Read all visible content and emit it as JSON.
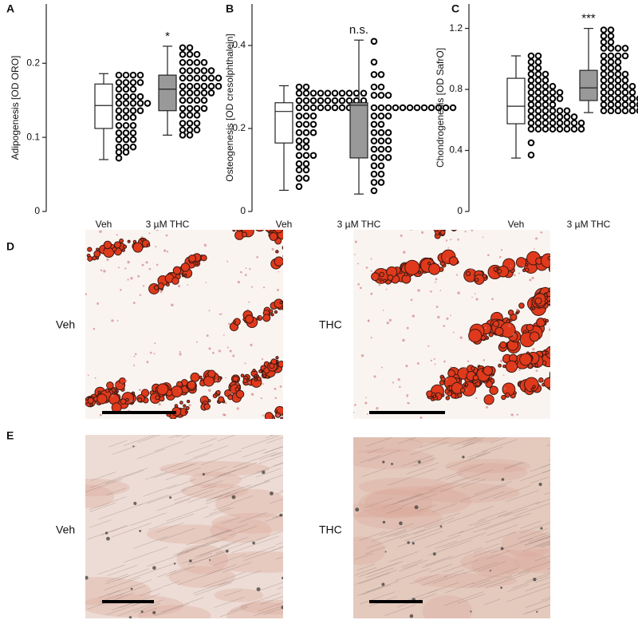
{
  "chart_data": [
    {
      "type": "box",
      "panel": "A",
      "ylabel": "Adipogenesis [OD ORO]",
      "categories": [
        "Veh",
        "3 µM THC"
      ],
      "ylim": [
        0,
        0.28
      ],
      "yticks": [
        0,
        0.1,
        0.2
      ],
      "box_colors": [
        "#ffffff",
        "#999999"
      ],
      "significance": [
        null,
        "*"
      ],
      "boxes": [
        {
          "whisker_low": 0.07,
          "q1": 0.112,
          "median": 0.143,
          "q3": 0.172,
          "whisker_high": 0.186
        },
        {
          "whisker_low": 0.103,
          "q1": 0.136,
          "median": 0.165,
          "q3": 0.184,
          "whisker_high": 0.223
        }
      ],
      "points": [
        [
          0.184,
          0.184,
          0.184,
          0.184,
          0.174,
          0.174,
          0.174,
          0.174,
          0.165,
          0.165,
          0.165,
          0.155,
          0.155,
          0.155,
          0.155,
          0.146,
          0.146,
          0.146,
          0.146,
          0.146,
          0.136,
          0.136,
          0.136,
          0.136,
          0.127,
          0.127,
          0.127,
          0.116,
          0.116,
          0.116,
          0.106,
          0.106,
          0.106,
          0.097,
          0.097,
          0.097,
          0.087,
          0.087,
          0.087,
          0.08,
          0.08,
          0.072
        ],
        [
          0.221,
          0.221,
          0.212,
          0.212,
          0.212,
          0.201,
          0.201,
          0.201,
          0.201,
          0.19,
          0.19,
          0.19,
          0.19,
          0.19,
          0.18,
          0.18,
          0.18,
          0.18,
          0.18,
          0.18,
          0.169,
          0.169,
          0.169,
          0.169,
          0.169,
          0.169,
          0.16,
          0.16,
          0.16,
          0.16,
          0.16,
          0.15,
          0.15,
          0.15,
          0.15,
          0.139,
          0.139,
          0.139,
          0.139,
          0.13,
          0.13,
          0.13,
          0.119,
          0.119,
          0.119,
          0.11,
          0.11,
          0.11,
          0.103,
          0.103
        ]
      ]
    },
    {
      "type": "box",
      "panel": "B",
      "ylabel": "Osteogenesis [OD cresolphthalein]",
      "categories": [
        "Veh",
        "3 µM THC"
      ],
      "ylim": [
        0,
        0.5
      ],
      "yticks": [
        0,
        0.2,
        0.4
      ],
      "box_colors": [
        "#ffffff",
        "#999999"
      ],
      "significance": [
        null,
        "n.s."
      ],
      "boxes": [
        {
          "whisker_low": 0.051,
          "q1": 0.165,
          "median": 0.241,
          "q3": 0.262,
          "whisker_high": 0.303
        },
        {
          "whisker_low": 0.042,
          "q1": 0.129,
          "median": 0.256,
          "q3": 0.262,
          "whisker_high": 0.413
        }
      ],
      "points": [
        [
          0.3,
          0.3,
          0.285,
          0.285,
          0.285,
          0.285,
          0.285,
          0.285,
          0.285,
          0.285,
          0.285,
          0.285,
          0.267,
          0.267,
          0.267,
          0.267,
          0.267,
          0.267,
          0.267,
          0.267,
          0.267,
          0.267,
          0.25,
          0.25,
          0.25,
          0.25,
          0.25,
          0.25,
          0.25,
          0.25,
          0.23,
          0.23,
          0.23,
          0.21,
          0.21,
          0.21,
          0.19,
          0.19,
          0.19,
          0.17,
          0.17,
          0.155,
          0.155,
          0.135,
          0.135,
          0.135,
          0.115,
          0.115,
          0.1,
          0.1,
          0.08,
          0.08,
          0.06
        ],
        [
          0.41,
          0.36,
          0.33,
          0.33,
          0.3,
          0.3,
          0.28,
          0.28,
          0.28,
          0.25,
          0.25,
          0.25,
          0.25,
          0.25,
          0.25,
          0.25,
          0.25,
          0.25,
          0.25,
          0.25,
          0.25,
          0.23,
          0.23,
          0.23,
          0.21,
          0.21,
          0.19,
          0.19,
          0.19,
          0.17,
          0.17,
          0.17,
          0.15,
          0.15,
          0.15,
          0.13,
          0.13,
          0.13,
          0.11,
          0.11,
          0.09,
          0.09,
          0.07,
          0.07,
          0.05
        ]
      ]
    },
    {
      "type": "box",
      "panel": "C",
      "ylabel": "Chondrogenesis [OD SafrO]",
      "categories": [
        "Veh",
        "3 µM THC"
      ],
      "ylim": [
        0,
        1.36
      ],
      "yticks": [
        0,
        0.4,
        0.8,
        1.2
      ],
      "box_colors": [
        "#ffffff",
        "#999999"
      ],
      "significance": [
        null,
        "***"
      ],
      "boxes": [
        {
          "whisker_low": 0.35,
          "q1": 0.575,
          "median": 0.69,
          "q3": 0.873,
          "whisker_high": 1.02
        },
        {
          "whisker_low": 0.648,
          "q1": 0.727,
          "median": 0.81,
          "q3": 0.925,
          "whisker_high": 1.2
        }
      ],
      "points": [
        [
          1.02,
          1.02,
          0.98,
          0.98,
          0.94,
          0.94,
          0.9,
          0.9,
          0.9,
          0.86,
          0.86,
          0.86,
          0.82,
          0.82,
          0.82,
          0.82,
          0.78,
          0.78,
          0.78,
          0.78,
          0.78,
          0.74,
          0.74,
          0.74,
          0.74,
          0.74,
          0.7,
          0.7,
          0.7,
          0.7,
          0.66,
          0.66,
          0.66,
          0.66,
          0.66,
          0.66,
          0.62,
          0.62,
          0.62,
          0.62,
          0.62,
          0.62,
          0.62,
          0.58,
          0.58,
          0.58,
          0.58,
          0.58,
          0.58,
          0.58,
          0.58,
          0.54,
          0.54,
          0.54,
          0.54,
          0.54,
          0.54,
          0.54,
          0.54,
          0.45,
          0.37
        ],
        [
          1.19,
          1.19,
          1.15,
          1.15,
          1.11,
          1.11,
          1.07,
          1.07,
          1.07,
          1.07,
          1.02,
          1.02,
          1.02,
          1.02,
          0.98,
          0.98,
          0.98,
          0.94,
          0.94,
          0.94,
          0.9,
          0.9,
          0.9,
          0.9,
          0.86,
          0.86,
          0.86,
          0.86,
          0.82,
          0.82,
          0.82,
          0.82,
          0.82,
          0.78,
          0.78,
          0.78,
          0.78,
          0.78,
          0.74,
          0.74,
          0.74,
          0.74,
          0.74,
          0.74,
          0.74,
          0.7,
          0.7,
          0.7,
          0.7,
          0.7,
          0.7,
          0.7,
          0.7,
          0.66,
          0.66,
          0.66,
          0.66,
          0.66,
          0.66,
          0.66,
          0.66,
          0.66
        ]
      ]
    }
  ],
  "images": [
    {
      "panel": "D",
      "left_label": "Veh",
      "right_label": "THC"
    },
    {
      "panel": "E",
      "left_label": "Veh",
      "right_label": "THC"
    }
  ]
}
